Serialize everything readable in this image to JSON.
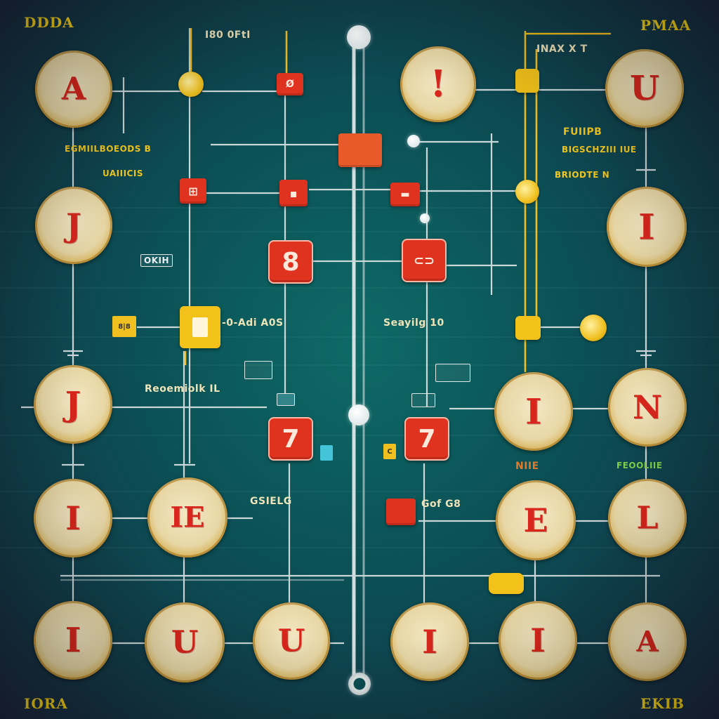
{
  "diagram": {
    "colors": {
      "background": "#0b4f55",
      "wire_white": "#dfe6e6",
      "wire_yellow": "#f0c020",
      "coin_gold": "#d9b864",
      "chip_red": "#e0331f",
      "label_yellow": "#f4c81e"
    },
    "corner_labels": {
      "top_left": "DDDA",
      "top_right": "PMAA",
      "bottom_left": "IORA",
      "bottom_right": "EKIB"
    },
    "labels": {
      "top_center": "I80 0FtI",
      "top_right": "INAX X T",
      "right_heading": "FUIIPB",
      "right_sub": "BIGSCHZIII IUE",
      "right_sub2": "BRIODTE N",
      "left_heading": "EGMIILBOEODS B",
      "left_sub": "UAIIICIS",
      "left_box": "OKIH",
      "center_left": "-0-Adi A0S",
      "center_right": "Seayilg 10",
      "left_mid": "Reoemiolk IL",
      "bottom_left_mid": "GSIELG",
      "bottom_right_mid": "Gof G8",
      "right_mid": "FEOOLIIE",
      "right_mid_orange": "NIIE"
    },
    "coins": [
      {
        "id": "coin-r1-c1",
        "glyph": "A"
      },
      {
        "id": "coin-r1-c5",
        "glyph": "!"
      },
      {
        "id": "coin-r1-c6",
        "glyph": "U"
      },
      {
        "id": "coin-r2-c1",
        "glyph": "J"
      },
      {
        "id": "coin-r2-c6",
        "glyph": "I"
      },
      {
        "id": "coin-r3-c1",
        "glyph": "J"
      },
      {
        "id": "coin-r3-c5",
        "glyph": "I"
      },
      {
        "id": "coin-r3-c6",
        "glyph": "N"
      },
      {
        "id": "coin-r4-c1",
        "glyph": "I"
      },
      {
        "id": "coin-r4-c2",
        "glyph": "IE"
      },
      {
        "id": "coin-r4-c5",
        "glyph": "E"
      },
      {
        "id": "coin-r4-c6",
        "glyph": "L"
      },
      {
        "id": "coin-r5-c1",
        "glyph": "I"
      },
      {
        "id": "coin-r5-c2",
        "glyph": "U"
      },
      {
        "id": "coin-r5-c3",
        "glyph": "U"
      },
      {
        "id": "coin-r5-c4",
        "glyph": "I"
      },
      {
        "id": "coin-r5-c5",
        "glyph": "I"
      },
      {
        "id": "coin-r5-c6",
        "glyph": "A"
      }
    ],
    "chips": [
      {
        "id": "chip-1",
        "glyph": "Ø"
      },
      {
        "id": "chip-2",
        "glyph": ""
      },
      {
        "id": "chip-3",
        "glyph": "⊞"
      },
      {
        "id": "chip-4",
        "glyph": "▪"
      },
      {
        "id": "chip-5",
        "glyph": "▬"
      },
      {
        "id": "chip-big-1",
        "glyph": "8"
      },
      {
        "id": "chip-big-2",
        "glyph": "⊂⊃"
      },
      {
        "id": "chip-big-3",
        "glyph": "7"
      },
      {
        "id": "chip-big-4",
        "glyph": "7"
      },
      {
        "id": "chip-small",
        "glyph": ""
      }
    ],
    "small_boxes": {
      "left_square": "8|8",
      "blue_square": "",
      "yellow_c": "C"
    }
  }
}
